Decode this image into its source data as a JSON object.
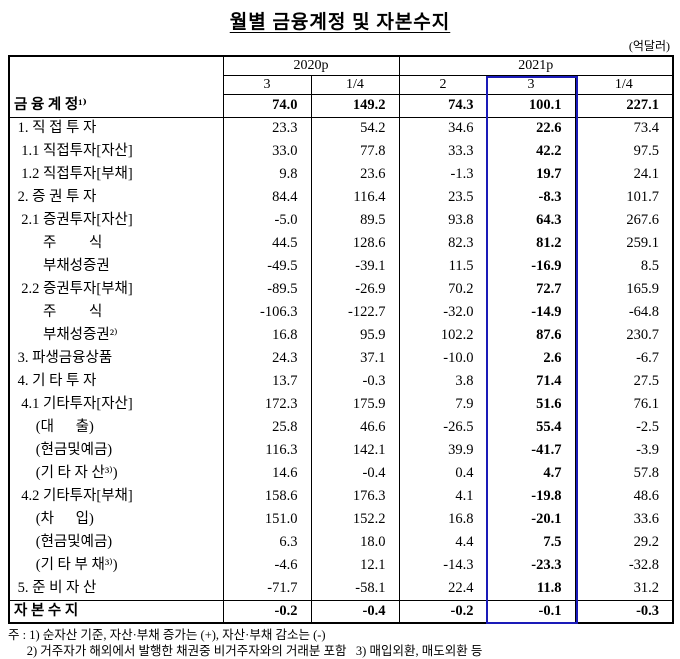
{
  "title": "월별 금융계정 및 자본수지",
  "unit_label": "(억달러)",
  "colors": {
    "highlight_border": "#1a1ab8"
  },
  "table": {
    "col_groups": [
      {
        "label": "2020p"
      },
      {
        "label": "2021p"
      }
    ],
    "col_headers": [
      "3",
      "1/4",
      "2",
      "3",
      "1/4"
    ],
    "highlight_col_index": 3,
    "rows": [
      {
        "label": "금 융 계 정¹⁾",
        "values": [
          "74.0",
          "149.2",
          "74.3",
          "100.1",
          "227.1"
        ],
        "bold": true,
        "line_below": true
      },
      {
        "label": " 1. 직 접 투 자",
        "values": [
          "23.3",
          "54.2",
          "34.6",
          "22.6",
          "73.4"
        ]
      },
      {
        "label": "  1.1 직접투자[자산]",
        "values": [
          "33.0",
          "77.8",
          "33.3",
          "42.2",
          "97.5"
        ]
      },
      {
        "label": "  1.2 직접투자[부채]",
        "values": [
          "9.8",
          "23.6",
          "-1.3",
          "19.7",
          "24.1"
        ]
      },
      {
        "label": " 2. 증 권 투 자",
        "values": [
          "84.4",
          "116.4",
          "23.5",
          "-8.3",
          "101.7"
        ]
      },
      {
        "label": "  2.1 증권투자[자산]",
        "values": [
          "-5.0",
          "89.5",
          "93.8",
          "64.3",
          "267.6"
        ]
      },
      {
        "label": "        주         식",
        "values": [
          "44.5",
          "128.6",
          "82.3",
          "81.2",
          "259.1"
        ]
      },
      {
        "label": "        부채성증권",
        "values": [
          "-49.5",
          "-39.1",
          "11.5",
          "-16.9",
          "8.5"
        ]
      },
      {
        "label": "  2.2 증권투자[부채]",
        "values": [
          "-89.5",
          "-26.9",
          "70.2",
          "72.7",
          "165.9"
        ]
      },
      {
        "label": "        주         식",
        "values": [
          "-106.3",
          "-122.7",
          "-32.0",
          "-14.9",
          "-64.8"
        ]
      },
      {
        "label": "        부채성증권²⁾",
        "values": [
          "16.8",
          "95.9",
          "102.2",
          "87.6",
          "230.7"
        ]
      },
      {
        "label": " 3. 파생금융상품",
        "values": [
          "24.3",
          "37.1",
          "-10.0",
          "2.6",
          "-6.7"
        ]
      },
      {
        "label": " 4. 기 타 투 자",
        "values": [
          "13.7",
          "-0.3",
          "3.8",
          "71.4",
          "27.5"
        ]
      },
      {
        "label": "  4.1 기타투자[자산]",
        "values": [
          "172.3",
          "175.9",
          "7.9",
          "51.6",
          "76.1"
        ]
      },
      {
        "label": "      (대      출)",
        "values": [
          "25.8",
          "46.6",
          "-26.5",
          "55.4",
          "-2.5"
        ]
      },
      {
        "label": "      (현금및예금)",
        "values": [
          "116.3",
          "142.1",
          "39.9",
          "-41.7",
          "-3.9"
        ]
      },
      {
        "label": "      (기 타 자 산³⁾)",
        "values": [
          "14.6",
          "-0.4",
          "0.4",
          "4.7",
          "57.8"
        ]
      },
      {
        "label": "  4.2 기타투자[부채]",
        "values": [
          "158.6",
          "176.3",
          "4.1",
          "-19.8",
          "48.6"
        ]
      },
      {
        "label": "      (차      입)",
        "values": [
          "151.0",
          "152.2",
          "16.8",
          "-20.1",
          "33.6"
        ]
      },
      {
        "label": "      (현금및예금)",
        "values": [
          "6.3",
          "18.0",
          "4.4",
          "7.5",
          "29.2"
        ]
      },
      {
        "label": "      (기 타 부 채³⁾)",
        "values": [
          "-4.6",
          "12.1",
          "-14.3",
          "-23.3",
          "-32.8"
        ]
      },
      {
        "label": " 5. 준 비 자 산",
        "values": [
          "-71.7",
          "-58.1",
          "22.4",
          "11.8",
          "31.2"
        ],
        "line_below": true
      },
      {
        "label": "자 본 수 지",
        "values": [
          "-0.2",
          "-0.4",
          "-0.2",
          "-0.1",
          "-0.3"
        ],
        "bold": true
      }
    ]
  },
  "footnotes": [
    "주 : 1) 순자산 기준, 자산·부채 증가는 (+), 자산·부채 감소는 (-)",
    "      2) 거주자가 해외에서 발행한 채권중 비거주자와의 거래분 포함   3) 매입외환, 매도외환 등"
  ]
}
